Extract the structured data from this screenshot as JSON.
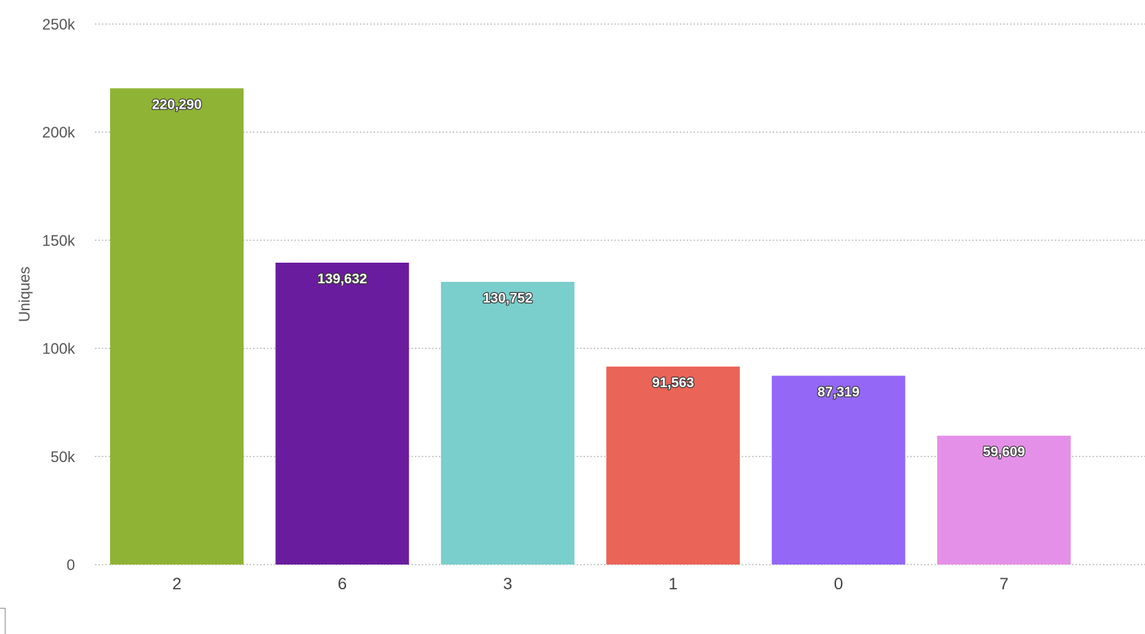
{
  "chart_data": {
    "type": "bar",
    "categories": [
      "2",
      "6",
      "3",
      "1",
      "0",
      "7"
    ],
    "values": [
      220290,
      139632,
      130752,
      91563,
      87319,
      59609
    ],
    "data_labels": [
      "220,290",
      "139,632",
      "130,752",
      "91,563",
      "87,319",
      "59,609"
    ],
    "colors": [
      "#8fb335",
      "#6a1c9e",
      "#7acecc",
      "#ea6457",
      "#9467f6",
      "#e590e8"
    ],
    "ylabel": "Uniques",
    "ylim": [
      0,
      250000
    ],
    "yticks": [
      0,
      50000,
      100000,
      150000,
      200000,
      250000
    ],
    "ytick_labels": [
      "0",
      "50k",
      "100k",
      "150k",
      "200k",
      "250k"
    ],
    "grid": true,
    "grid_color": "#b8b8b8"
  }
}
